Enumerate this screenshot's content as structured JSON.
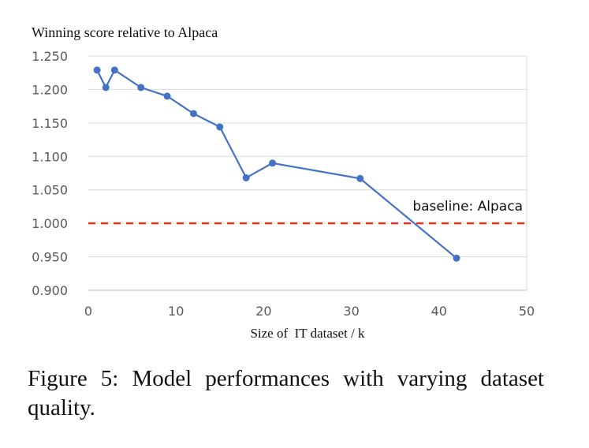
{
  "chart_data": {
    "type": "line",
    "title": "Winning score relative to Alpaca",
    "xlabel": "Size of  IT dataset / k",
    "ylabel": "",
    "xlim": [
      0,
      50
    ],
    "ylim": [
      0.9,
      1.25
    ],
    "x_ticks": [
      0,
      10,
      20,
      30,
      40,
      50
    ],
    "y_ticks": [
      0.9,
      0.95,
      1.0,
      1.05,
      1.1,
      1.15,
      1.2,
      1.25
    ],
    "y_tick_labels": [
      "0.900",
      "0.950",
      "1.000",
      "1.050",
      "1.100",
      "1.150",
      "1.200",
      "1.250"
    ],
    "grid": "horizontal",
    "series": [
      {
        "color": "#4472C4",
        "x": [
          1,
          2,
          3,
          6,
          9,
          12,
          15,
          18,
          21,
          31,
          42
        ],
        "y": [
          1.229,
          1.203,
          1.229,
          1.203,
          1.19,
          1.164,
          1.144,
          1.068,
          1.09,
          1.067,
          0.948
        ]
      }
    ],
    "reference_lines": [
      {
        "y": 1.0,
        "label": "baseline: Alpaca",
        "color": "#E8332A",
        "style": "dashed"
      }
    ]
  },
  "caption": "Figure 5:  Model performances with varying dataset quality."
}
